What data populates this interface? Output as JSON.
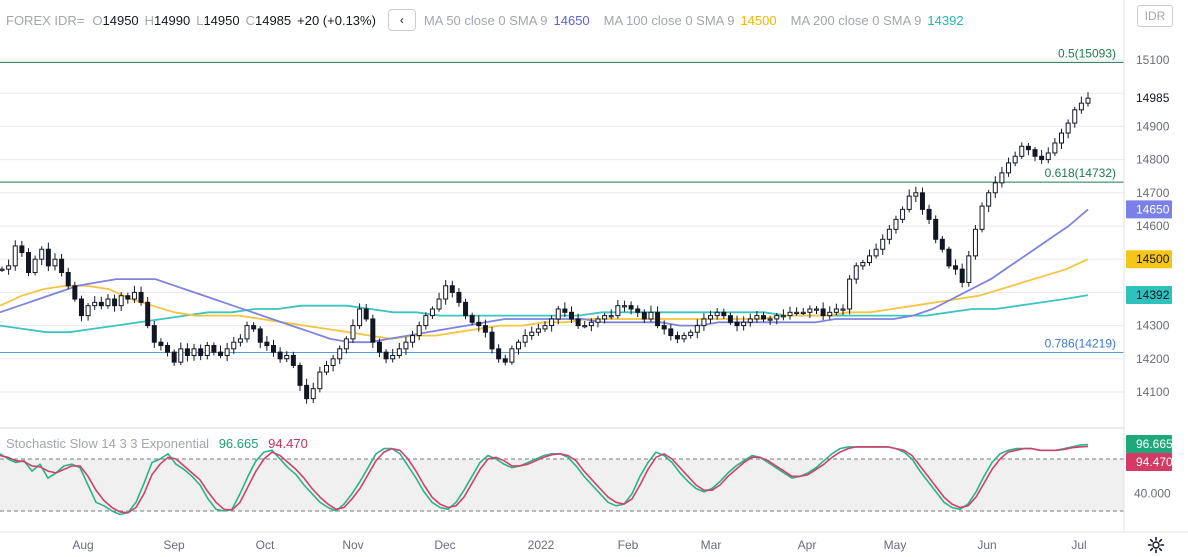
{
  "symbol_selector": "IDR",
  "legend": {
    "symbol": "FOREX IDR=",
    "open_label": "O",
    "open": "14950",
    "high_label": "H",
    "high": "14990",
    "low_label": "L",
    "low": "14950",
    "close_label": "C",
    "close": "14985",
    "change": "+20 (+0.13%)",
    "nav_glyph": "‹",
    "ma50_label": "MA 50 close 0 SMA 9",
    "ma50_value": "14650",
    "ma100_label": "MA 100 close 0 SMA 9",
    "ma100_value": "14500",
    "ma200_label": "MA 200 close 0 SMA 9",
    "ma200_value": "14392"
  },
  "colors": {
    "up": "#131722",
    "down": "#131722",
    "ma50": "#7e83e0",
    "ma100": "#f5c542",
    "ma200": "#3cc4c0",
    "fib_line": "#1d7a4c",
    "fib_text_05": "#1d7a4c",
    "fib_text_0618": "#1d7a4c",
    "fib_line_0786": "#5b9bd5",
    "fib_text_0786": "#3a7bd5",
    "stoch_k": "#26b58a",
    "stoch_d": "#d1416a",
    "stoch_band": "#f0f0f0",
    "grid": "#e9eaee",
    "axis_text": "#6a6d78",
    "price_badge_bg": "#ffffff"
  },
  "price_axis": {
    "ticks": [
      "15100",
      "14900",
      "14800",
      "14700",
      "14600",
      "14300",
      "14200",
      "14100"
    ],
    "last_price": "14985",
    "ma50_badge": "14650",
    "ma100_badge": "14500",
    "ma200_badge": "14392"
  },
  "time_axis": {
    "labels": [
      "Aug",
      "Sep",
      "Oct",
      "Nov",
      "Dec",
      "2022",
      "Feb",
      "Mar",
      "Apr",
      "May",
      "Jun",
      "Jul"
    ]
  },
  "fib_levels": [
    {
      "ratio": "0.5",
      "value": 15093,
      "label": "0.5(15093)"
    },
    {
      "ratio": "0.618",
      "value": 14732,
      "label": "0.618(14732)"
    },
    {
      "ratio": "0.786",
      "value": 14219,
      "label": "0.786(14219)"
    }
  ],
  "stochastic": {
    "label": "Stochastic Slow 14 3 3 Exponential",
    "k_value": "96.665",
    "d_value": "94.470",
    "axis_tick": "40.000",
    "upper_band": 80,
    "lower_band": 20
  },
  "chart_data": {
    "type": "candlestick",
    "title": "FOREX IDR=",
    "ylim": [
      14030,
      15120
    ],
    "date_range": [
      "Jul 2021",
      "Jul 2022"
    ],
    "closes": [
      14470,
      14480,
      14540,
      14520,
      14460,
      14500,
      14530,
      14480,
      14500,
      14460,
      14420,
      14380,
      14330,
      14360,
      14370,
      14360,
      14380,
      14360,
      14390,
      14380,
      14400,
      14370,
      14300,
      14250,
      14240,
      14220,
      14190,
      14230,
      14210,
      14230,
      14210,
      14240,
      14220,
      14210,
      14230,
      14250,
      14260,
      14300,
      14290,
      14250,
      14240,
      14220,
      14200,
      14210,
      14180,
      14120,
      14080,
      14110,
      14160,
      14180,
      14200,
      14230,
      14260,
      14300,
      14350,
      14320,
      14250,
      14220,
      14200,
      14210,
      14230,
      14250,
      14270,
      14300,
      14330,
      14350,
      14380,
      14420,
      14400,
      14370,
      14330,
      14310,
      14300,
      14280,
      14230,
      14200,
      14190,
      14230,
      14250,
      14270,
      14280,
      14290,
      14300,
      14320,
      14350,
      14340,
      14320,
      14300,
      14300,
      14310,
      14320,
      14330,
      14330,
      14360,
      14360,
      14350,
      14340,
      14320,
      14340,
      14300,
      14290,
      14270,
      14260,
      14270,
      14280,
      14300,
      14320,
      14330,
      14340,
      14330,
      14310,
      14300,
      14310,
      14320,
      14330,
      14320,
      14320,
      14330,
      14330,
      14340,
      14340,
      14340,
      14350,
      14350,
      14330,
      14340,
      14350,
      14350,
      14440,
      14480,
      14490,
      14510,
      14530,
      14560,
      14590,
      14620,
      14650,
      14690,
      14700,
      14650,
      14620,
      14560,
      14530,
      14480,
      14470,
      14430,
      14510,
      14590,
      14660,
      14700,
      14730,
      14760,
      14790,
      14810,
      14840,
      14830,
      14810,
      14800,
      14820,
      14850,
      14880,
      14910,
      14950,
      14970,
      14985
    ],
    "ma50": [
      14340,
      14360,
      14380,
      14400,
      14420,
      14430,
      14440,
      14440,
      14440,
      14420,
      14400,
      14380,
      14360,
      14340,
      14320,
      14300,
      14280,
      14260,
      14250,
      14250,
      14260,
      14270,
      14280,
      14290,
      14300,
      14310,
      14320,
      14320,
      14320,
      14320,
      14320,
      14310,
      14310,
      14310,
      14310,
      14300,
      14300,
      14310,
      14310,
      14310,
      14310,
      14310,
      14310,
      14320,
      14320,
      14320,
      14320,
      14330,
      14350,
      14380,
      14410,
      14440,
      14480,
      14520,
      14560,
      14600,
      14650
    ],
    "ma100": [
      14360,
      14390,
      14410,
      14420,
      14420,
      14410,
      14380,
      14360,
      14340,
      14330,
      14330,
      14330,
      14320,
      14310,
      14300,
      14290,
      14280,
      14270,
      14260,
      14270,
      14270,
      14280,
      14290,
      14300,
      14300,
      14310,
      14310,
      14320,
      14320,
      14320,
      14320,
      14320,
      14320,
      14320,
      14320,
      14320,
      14330,
      14330,
      14330,
      14340,
      14340,
      14350,
      14360,
      14370,
      14380,
      14390,
      14410,
      14430,
      14450,
      14470,
      14500
    ],
    "ma200": [
      14300,
      14290,
      14280,
      14280,
      14290,
      14300,
      14310,
      14320,
      14330,
      14340,
      14340,
      14350,
      14350,
      14360,
      14360,
      14360,
      14350,
      14340,
      14340,
      14330,
      14330,
      14330,
      14330,
      14330,
      14330,
      14330,
      14340,
      14340,
      14340,
      14340,
      14340,
      14340,
      14340,
      14340,
      14330,
      14330,
      14330,
      14330,
      14330,
      14330,
      14330,
      14340,
      14350,
      14350,
      14360,
      14370,
      14380,
      14392
    ],
    "stoch_k": [
      86,
      80,
      76,
      78,
      66,
      74,
      58,
      64,
      72,
      74,
      70,
      50,
      30,
      26,
      20,
      16,
      18,
      30,
      52,
      76,
      80,
      86,
      74,
      68,
      60,
      50,
      34,
      22,
      20,
      22,
      40,
      60,
      78,
      88,
      90,
      80,
      70,
      62,
      50,
      40,
      30,
      24,
      20,
      28,
      40,
      54,
      70,
      86,
      92,
      92,
      86,
      72,
      58,
      42,
      30,
      24,
      22,
      30,
      44,
      60,
      76,
      84,
      80,
      74,
      70,
      72,
      76,
      80,
      84,
      86,
      86,
      82,
      72,
      60,
      50,
      40,
      30,
      26,
      28,
      40,
      60,
      76,
      88,
      84,
      76,
      64,
      54,
      46,
      42,
      46,
      54,
      64,
      72,
      78,
      84,
      82,
      76,
      70,
      64,
      58,
      60,
      64,
      70,
      78,
      86,
      92,
      94,
      94,
      94,
      94,
      94,
      94,
      92,
      88,
      80,
      66,
      54,
      42,
      30,
      24,
      22,
      28,
      42,
      60,
      76,
      86,
      90,
      92,
      92,
      92,
      90,
      90,
      90,
      92,
      94,
      96,
      96.665
    ],
    "stoch_d": [
      84,
      82,
      78,
      77,
      72,
      71,
      66,
      64,
      68,
      72,
      72,
      60,
      44,
      32,
      24,
      19,
      18,
      24,
      40,
      62,
      74,
      82,
      80,
      72,
      64,
      56,
      42,
      30,
      22,
      21,
      30,
      48,
      66,
      80,
      88,
      84,
      76,
      68,
      58,
      46,
      36,
      28,
      22,
      24,
      34,
      46,
      62,
      78,
      88,
      92,
      90,
      80,
      66,
      50,
      36,
      28,
      24,
      26,
      36,
      52,
      68,
      80,
      82,
      78,
      72,
      72,
      74,
      78,
      82,
      85,
      86,
      84,
      78,
      66,
      56,
      46,
      36,
      30,
      28,
      34,
      50,
      68,
      82,
      86,
      80,
      70,
      60,
      50,
      44,
      44,
      50,
      60,
      68,
      76,
      82,
      82,
      78,
      72,
      66,
      60,
      60,
      62,
      68,
      74,
      82,
      88,
      92,
      94,
      94,
      94,
      94,
      94,
      92,
      90,
      84,
      72,
      60,
      48,
      36,
      28,
      24,
      26,
      36,
      52,
      68,
      80,
      88,
      90,
      92,
      92,
      90,
      90,
      90,
      91,
      93,
      94,
      94.47
    ]
  }
}
